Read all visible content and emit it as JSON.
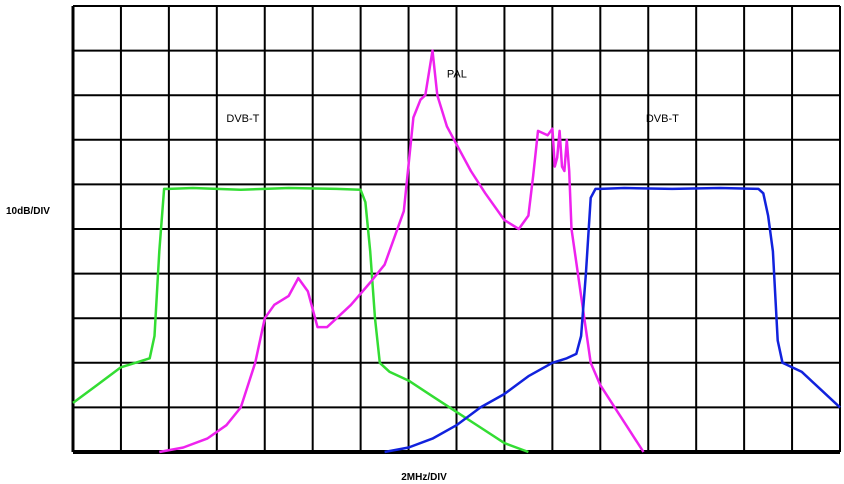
{
  "chart_data": {
    "type": "line",
    "xlabel": "2MHz/DIV",
    "ylabel": "10dB/DIV",
    "x_divisions": 16,
    "y_divisions": 10,
    "xlim": [
      0,
      16
    ],
    "ylim": [
      0,
      10
    ],
    "grid": true,
    "annotations": [
      {
        "text": "DVB-T",
        "x": 3.2,
        "y": 7.4
      },
      {
        "text": "PAL",
        "x": 7.8,
        "y": 8.4
      },
      {
        "text": "DVB-T",
        "x": 11.95,
        "y": 7.4
      }
    ],
    "series": [
      {
        "color": "#33dd33",
        "x": [
          0.0,
          0.5,
          1.0,
          1.6,
          1.7,
          1.8,
          1.9,
          2.0,
          2.5,
          3.5,
          4.5,
          5.5,
          6.0,
          6.1,
          6.2,
          6.3,
          6.4,
          6.5,
          6.6,
          7.0,
          7.5,
          8.0,
          8.5,
          9.0,
          9.5
        ],
        "y": [
          1.1,
          1.5,
          1.9,
          2.1,
          2.6,
          4.5,
          5.9,
          5.9,
          5.92,
          5.88,
          5.92,
          5.9,
          5.88,
          5.6,
          4.5,
          3.0,
          2.0,
          1.9,
          1.8,
          1.6,
          1.25,
          0.9,
          0.55,
          0.2,
          0.0
        ]
      },
      {
        "color": "#ee22ee",
        "x": [
          1.8,
          2.3,
          2.8,
          3.2,
          3.5,
          3.8,
          4.0,
          4.2,
          4.5,
          4.7,
          4.9,
          5.1,
          5.3,
          5.5,
          5.8,
          6.2,
          6.5,
          6.7,
          6.9,
          7.1,
          7.25,
          7.35,
          7.5,
          7.6,
          7.8,
          8.0,
          8.3,
          8.6,
          9.0,
          9.3,
          9.5,
          9.6,
          9.7,
          9.9,
          10.0,
          10.05,
          10.1,
          10.15,
          10.2,
          10.25,
          10.3,
          10.35,
          10.4,
          10.6,
          10.8,
          11.0,
          11.3,
          11.6,
          11.9
        ],
        "y": [
          0.0,
          0.1,
          0.3,
          0.6,
          1.0,
          2.0,
          3.0,
          3.3,
          3.5,
          3.9,
          3.6,
          2.8,
          2.8,
          3.0,
          3.3,
          3.8,
          4.2,
          4.8,
          5.4,
          7.5,
          7.9,
          8.0,
          9.0,
          8.0,
          7.3,
          6.9,
          6.3,
          5.8,
          5.2,
          5.0,
          5.3,
          6.2,
          7.2,
          7.1,
          7.25,
          6.4,
          6.6,
          7.2,
          6.4,
          6.3,
          7.0,
          6.3,
          5.0,
          3.5,
          2.0,
          1.5,
          1.0,
          0.5,
          0.0
        ]
      },
      {
        "color": "#1122dd",
        "x": [
          6.5,
          7.0,
          7.5,
          8.0,
          8.5,
          9.0,
          9.5,
          10.0,
          10.3,
          10.5,
          10.6,
          10.7,
          10.8,
          10.9,
          11.0,
          11.5,
          12.5,
          13.5,
          14.3,
          14.4,
          14.5,
          14.6,
          14.7,
          14.8,
          15.2,
          15.6,
          16.0
        ],
        "y": [
          0.0,
          0.1,
          0.3,
          0.6,
          1.0,
          1.3,
          1.7,
          2.0,
          2.1,
          2.2,
          2.6,
          4.0,
          5.7,
          5.9,
          5.9,
          5.92,
          5.9,
          5.92,
          5.9,
          5.8,
          5.3,
          4.5,
          2.5,
          2.0,
          1.8,
          1.4,
          1.0
        ]
      }
    ]
  }
}
